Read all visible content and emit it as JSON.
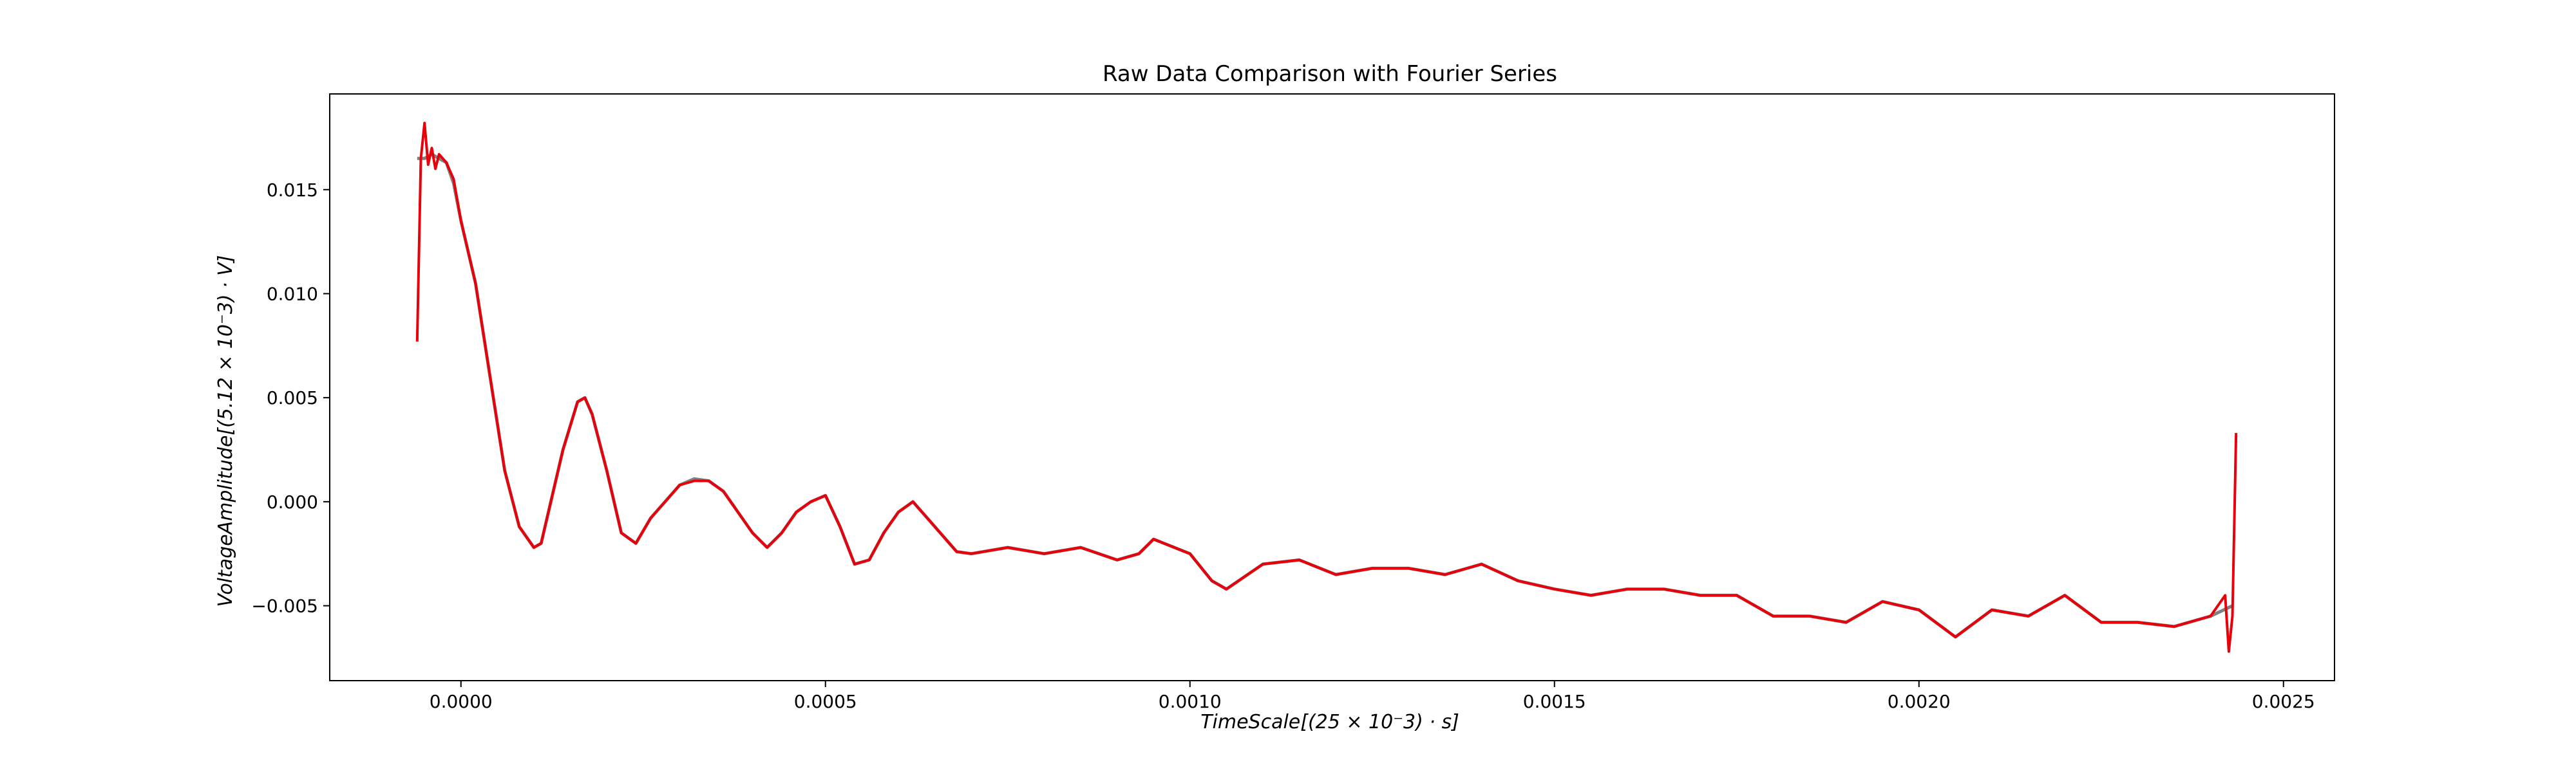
{
  "chart_data": {
    "type": "line",
    "title": "Raw Data Comparison with Fourier Series",
    "xlabel": "TimeScale[(25 × 10⁻3) · s]",
    "ylabel": "VoltageAmplitude[(5.12 × 10⁻3) · V]",
    "xlim": [
      -0.00018,
      0.00257
    ],
    "ylim": [
      -0.0086,
      0.0196
    ],
    "xticks": [
      0.0,
      0.0005,
      0.001,
      0.0015,
      0.002,
      0.0025
    ],
    "xtick_labels": [
      "0.0000",
      "0.0005",
      "0.0010",
      "0.0015",
      "0.0020",
      "0.0025"
    ],
    "yticks": [
      -0.005,
      0.0,
      0.005,
      0.01,
      0.015
    ],
    "ytick_labels": [
      "−0.005",
      "0.000",
      "0.005",
      "0.010",
      "0.015"
    ],
    "grid": false,
    "series": [
      {
        "color": "#808080",
        "x": [
          -6e-05,
          -5e-05,
          -4e-05,
          -3e-05,
          -2e-05,
          -1e-05,
          0.0,
          2e-05,
          4e-05,
          6e-05,
          8e-05,
          0.0001,
          0.00011,
          0.00012,
          0.00014,
          0.00016,
          0.00017,
          0.00018,
          0.0002,
          0.00022,
          0.00024,
          0.00026,
          0.00028,
          0.0003,
          0.00032,
          0.00034,
          0.00036,
          0.00038,
          0.0004,
          0.00042,
          0.00044,
          0.00046,
          0.00048,
          0.0005,
          0.00052,
          0.00054,
          0.00056,
          0.00058,
          0.0006,
          0.00062,
          0.00065,
          0.00068,
          0.0007,
          0.00075,
          0.0008,
          0.00085,
          0.0009,
          0.00093,
          0.00095,
          0.001,
          0.00103,
          0.00105,
          0.0011,
          0.00115,
          0.0012,
          0.00125,
          0.0013,
          0.00135,
          0.0014,
          0.00145,
          0.0015,
          0.00155,
          0.0016,
          0.00165,
          0.0017,
          0.00175,
          0.0018,
          0.00185,
          0.0019,
          0.00195,
          0.002,
          0.00205,
          0.0021,
          0.00215,
          0.0022,
          0.00225,
          0.0023,
          0.00235,
          0.0024,
          0.00243
        ],
        "y": [
          0.0165,
          0.0165,
          0.0167,
          0.0165,
          0.0163,
          0.0153,
          0.0135,
          0.0105,
          0.006,
          0.0015,
          -0.0012,
          -0.0022,
          -0.002,
          -0.0005,
          0.0025,
          0.0048,
          0.005,
          0.0042,
          0.0015,
          -0.0015,
          -0.002,
          -0.0008,
          0.0,
          0.0008,
          0.0011,
          0.001,
          0.0005,
          -0.0005,
          -0.0015,
          -0.0022,
          -0.0015,
          -0.0005,
          0.0,
          0.0003,
          -0.0012,
          -0.003,
          -0.0028,
          -0.0015,
          -0.0005,
          0.0,
          -0.0012,
          -0.0024,
          -0.0025,
          -0.0022,
          -0.0025,
          -0.0022,
          -0.0028,
          -0.0025,
          -0.0018,
          -0.0025,
          -0.0038,
          -0.0042,
          -0.003,
          -0.0028,
          -0.0035,
          -0.0032,
          -0.0032,
          -0.0035,
          -0.003,
          -0.0038,
          -0.0042,
          -0.0045,
          -0.0042,
          -0.0042,
          -0.0045,
          -0.0045,
          -0.0055,
          -0.0055,
          -0.0058,
          -0.0048,
          -0.0052,
          -0.0065,
          -0.0052,
          -0.0055,
          -0.0045,
          -0.0058,
          -0.0058,
          -0.006,
          -0.0055,
          -0.005
        ]
      },
      {
        "color": "#e8000b",
        "x": [
          -6e-05,
          -5.5e-05,
          -5e-05,
          -4.5e-05,
          -4e-05,
          -3.5e-05,
          -3e-05,
          -2e-05,
          -1e-05,
          0.0,
          2e-05,
          4e-05,
          6e-05,
          8e-05,
          0.0001,
          0.00011,
          0.00012,
          0.00014,
          0.00016,
          0.00017,
          0.00018,
          0.0002,
          0.00022,
          0.00024,
          0.00026,
          0.00028,
          0.0003,
          0.00032,
          0.00034,
          0.00036,
          0.00038,
          0.0004,
          0.00042,
          0.00044,
          0.00046,
          0.00048,
          0.0005,
          0.00052,
          0.00054,
          0.00056,
          0.00058,
          0.0006,
          0.00062,
          0.00065,
          0.00068,
          0.0007,
          0.00075,
          0.0008,
          0.00085,
          0.0009,
          0.00093,
          0.00095,
          0.001,
          0.00103,
          0.00105,
          0.0011,
          0.00115,
          0.0012,
          0.00125,
          0.0013,
          0.00135,
          0.0014,
          0.00145,
          0.0015,
          0.00155,
          0.0016,
          0.00165,
          0.0017,
          0.00175,
          0.0018,
          0.00185,
          0.0019,
          0.00195,
          0.002,
          0.00205,
          0.0021,
          0.00215,
          0.0022,
          0.00225,
          0.0023,
          0.00235,
          0.0024,
          0.00242,
          0.002425,
          0.00243,
          0.002435
        ],
        "y": [
          0.0077,
          0.0165,
          0.0182,
          0.0162,
          0.017,
          0.016,
          0.0167,
          0.0163,
          0.0155,
          0.0135,
          0.0105,
          0.006,
          0.0015,
          -0.0012,
          -0.0022,
          -0.002,
          -0.0005,
          0.0025,
          0.0048,
          0.005,
          0.0042,
          0.0015,
          -0.0015,
          -0.002,
          -0.0008,
          0.0,
          0.0008,
          0.001,
          0.001,
          0.0005,
          -0.0005,
          -0.0015,
          -0.0022,
          -0.0015,
          -0.0005,
          0.0,
          0.0003,
          -0.0012,
          -0.003,
          -0.0028,
          -0.0015,
          -0.0005,
          0.0,
          -0.0012,
          -0.0024,
          -0.0025,
          -0.0022,
          -0.0025,
          -0.0022,
          -0.0028,
          -0.0025,
          -0.0018,
          -0.0025,
          -0.0038,
          -0.0042,
          -0.003,
          -0.0028,
          -0.0035,
          -0.0032,
          -0.0032,
          -0.0035,
          -0.003,
          -0.0038,
          -0.0042,
          -0.0045,
          -0.0042,
          -0.0042,
          -0.0045,
          -0.0045,
          -0.0055,
          -0.0055,
          -0.0058,
          -0.0048,
          -0.0052,
          -0.0065,
          -0.0052,
          -0.0055,
          -0.0045,
          -0.0058,
          -0.0058,
          -0.006,
          -0.0055,
          -0.0045,
          -0.0072,
          -0.0055,
          0.0033
        ]
      }
    ]
  }
}
